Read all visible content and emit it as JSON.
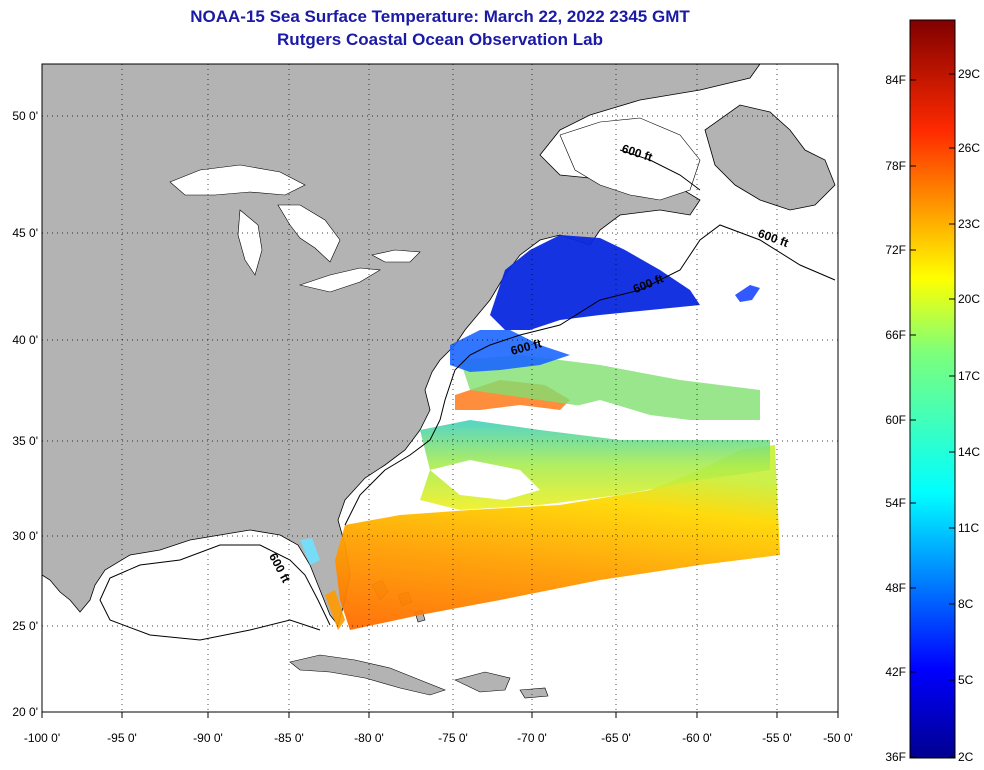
{
  "header": {
    "title": "NOAA-15 Sea Surface Temperature:  March 22, 2022 2345 GMT",
    "subtitle": "Rutgers Coastal Ocean Observation Lab"
  },
  "map": {
    "lon_ticks": [
      "-100 0'",
      "-95 0'",
      "-90 0'",
      "-85 0'",
      "-80 0'",
      "-75 0'",
      "-70 0'",
      "-65 0'",
      "-60 0'",
      "-55 0'",
      "-50 0'"
    ],
    "lat_ticks": [
      "50 0'",
      "45 0'",
      "40 0'",
      "35 0'",
      "30 0'",
      "25 0'",
      "20 0'"
    ],
    "isobath_labels": [
      "600 ft",
      "600 ft",
      "600 ft",
      "600 ft",
      "600 ft"
    ],
    "land_color": "#b3b3b3",
    "water_color": "#ffffff"
  },
  "colorbar": {
    "f_labels": [
      "84F",
      "78F",
      "72F",
      "66F",
      "60F",
      "54F",
      "48F",
      "42F",
      "36F"
    ],
    "c_labels": [
      "29C",
      "26C",
      "23C",
      "20C",
      "17C",
      "14C",
      "11C",
      "8C",
      "5C",
      "2C"
    ]
  }
}
